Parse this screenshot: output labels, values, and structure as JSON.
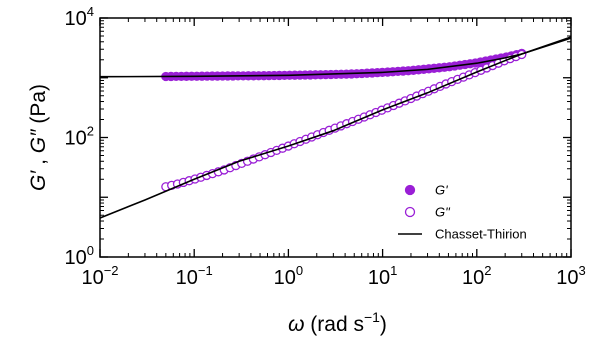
{
  "chart_data": {
    "type": "scatter",
    "xscale": "log",
    "yscale": "log",
    "xlim": [
      0.01,
      1000
    ],
    "ylim": [
      1,
      10000
    ],
    "grid": false,
    "legend_position": "bottom-right",
    "xlabel_symbol": "ω",
    "xlabel_unit": "(rad s",
    "xlabel_exp": "−1",
    "xlabel_close": ")",
    "ylabel_g1": "G′",
    "ylabel_sep": " , ",
    "ylabel_g2": "G″",
    "ylabel_unit": " (Pa)",
    "x_ticks": [
      {
        "value": 0.01,
        "base": "10",
        "exp": "−2"
      },
      {
        "value": 0.1,
        "base": "10",
        "exp": "−1"
      },
      {
        "value": 1,
        "base": "10",
        "exp": "0"
      },
      {
        "value": 10,
        "base": "10",
        "exp": "1"
      },
      {
        "value": 100,
        "base": "10",
        "exp": "2"
      },
      {
        "value": 1000,
        "base": "10",
        "exp": "3"
      }
    ],
    "y_ticks": [
      {
        "value": 1,
        "base": "10",
        "exp": "0"
      },
      {
        "value": 100,
        "base": "10",
        "exp": "2"
      },
      {
        "value": 10000,
        "base": "10",
        "exp": "4"
      }
    ],
    "series": [
      {
        "name": "G'",
        "marker": "filled-circle",
        "color": "#9a1fd6",
        "x": [
          0.05,
          0.1,
          0.2,
          0.5,
          1,
          2,
          5,
          10,
          20,
          50,
          100,
          200,
          300
        ],
        "y": [
          1050,
          1060,
          1070,
          1080,
          1100,
          1120,
          1160,
          1230,
          1320,
          1520,
          1780,
          2200,
          2550
        ]
      },
      {
        "name": "G\"",
        "marker": "open-circle",
        "color": "#9a1fd6",
        "x": [
          0.05,
          0.07,
          0.1,
          0.2,
          0.5,
          1,
          2,
          5,
          10,
          20,
          50,
          100,
          200,
          300
        ],
        "y": [
          15,
          17,
          20,
          28,
          48,
          72,
          110,
          190,
          290,
          450,
          820,
          1250,
          1950,
          2450
        ]
      },
      {
        "name": "Chasset-Thirion",
        "marker": "line",
        "color": "#000000",
        "x": [
          0.01,
          0.03,
          0.1,
          0.3,
          1,
          3,
          10,
          30,
          100,
          300,
          1000
        ],
        "y": [
          4.5,
          9,
          20,
          40,
          72,
          130,
          290,
          560,
          1250,
          2500,
          4800
        ]
      },
      {
        "name": "Chasset-Thirion G'",
        "marker": "line",
        "color": "#000000",
        "x": [
          0.01,
          0.1,
          1,
          10,
          30,
          100,
          200,
          300,
          1000
        ],
        "y": [
          1040,
          1055,
          1100,
          1230,
          1380,
          1750,
          2150,
          2500,
          4600
        ]
      }
    ]
  },
  "legend": {
    "items": [
      {
        "label": "G'",
        "italic": true
      },
      {
        "label": "G\"",
        "italic": true
      },
      {
        "label": "Chasset-Thirion",
        "italic": false
      }
    ]
  }
}
